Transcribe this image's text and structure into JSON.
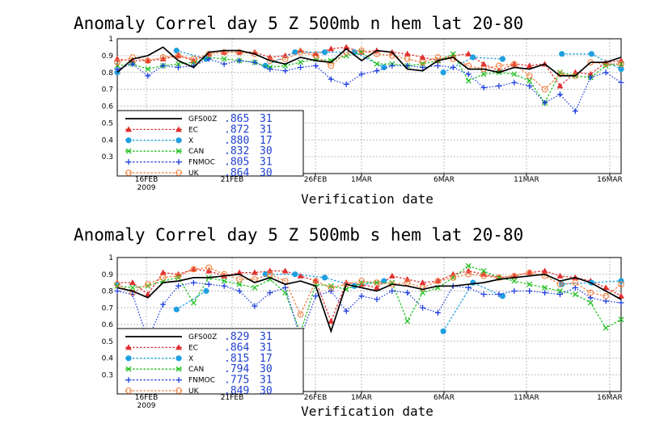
{
  "chart_data": [
    {
      "type": "line",
      "title": "Anomaly Correl   day 5   Z 500mb   n hem   lat 20-80",
      "xlabel": "Verification date",
      "ylabel": "",
      "ylim": [
        0.2,
        1.0
      ],
      "yticks": [
        "1",
        "0.9",
        "0.8",
        "0.7",
        "0.6",
        "0.5",
        "0.4",
        "0.3"
      ],
      "xtick_labels": [
        "16FEB",
        "21FEB",
        "26FEB",
        "1MAR",
        "6MAR",
        "11MAR",
        "16MAR"
      ],
      "xtick_sublabel": "2009",
      "grid": true,
      "legend_placement": "bottom-left",
      "series": [
        {
          "name": "GFS00Z",
          "score": ".865",
          "count": "31",
          "color": "#000000",
          "marker": "none",
          "values": [
            0.8,
            0.88,
            0.9,
            0.95,
            0.87,
            0.83,
            0.92,
            0.93,
            0.93,
            0.91,
            0.87,
            0.85,
            0.89,
            0.87,
            0.86,
            0.94,
            0.87,
            0.93,
            0.92,
            0.82,
            0.81,
            0.87,
            0.89,
            0.82,
            0.82,
            0.8,
            0.83,
            0.82,
            0.85,
            0.78,
            0.78,
            0.86,
            0.86,
            0.89
          ]
        },
        {
          "name": "EC",
          "score": ".872",
          "count": "31",
          "color": "#e03030",
          "marker": "triangle",
          "values": [
            0.88,
            0.87,
            0.87,
            0.88,
            0.9,
            0.87,
            0.91,
            0.92,
            0.92,
            0.92,
            0.89,
            0.9,
            0.93,
            0.91,
            0.94,
            0.95,
            0.92,
            0.93,
            0.92,
            0.91,
            0.89,
            0.87,
            0.9,
            0.91,
            0.85,
            0.81,
            0.85,
            0.84,
            0.85,
            0.72,
            0.8,
            0.79,
            0.86,
            0.87
          ]
        },
        {
          "name": "X",
          "score": ".880",
          "count": "17",
          "color": "#1ea0e0",
          "marker": "circle",
          "values": [
            0.8,
            null,
            0.93,
            0.88,
            null,
            0.84,
            0.92,
            0.92,
            0.92,
            0.83,
            null,
            0.8,
            0.89,
            0.88,
            null,
            0.91,
            0.91,
            0.82
          ]
        },
        {
          "name": "CAN",
          "score": ".832",
          "count": "30",
          "color": "#20c020",
          "marker": "x",
          "values": [
            0.84,
            0.85,
            0.82,
            0.84,
            0.85,
            0.86,
            0.89,
            0.88,
            0.87,
            0.86,
            0.83,
            0.84,
            0.86,
            0.88,
            0.87,
            0.9,
            0.92,
            0.85,
            0.85,
            0.84,
            0.85,
            0.87,
            0.91,
            0.75,
            0.79,
            0.8,
            0.79,
            0.75,
            0.62,
            0.8,
            0.78,
            0.77,
            0.84,
            0.85
          ]
        },
        {
          "name": "FNMOC",
          "score": ".805",
          "count": "31",
          "color": "#2040e0",
          "marker": "plus",
          "values": [
            0.82,
            0.85,
            0.78,
            0.84,
            0.83,
            0.84,
            0.88,
            0.85,
            0.87,
            0.86,
            0.82,
            0.81,
            0.83,
            0.84,
            0.76,
            0.73,
            0.79,
            0.81,
            0.84,
            0.84,
            0.83,
            0.84,
            0.83,
            0.79,
            0.71,
            0.72,
            0.74,
            0.72,
            0.62,
            0.67,
            0.57,
            0.77,
            0.8,
            0.74
          ]
        },
        {
          "name": "UK",
          "score": ".864",
          "count": "30",
          "color": "#f08040",
          "marker": "opencircle",
          "values": [
            0.86,
            0.89,
            0.87,
            0.89,
            0.9,
            0.88,
            0.91,
            0.92,
            0.92,
            0.91,
            0.87,
            0.88,
            0.92,
            0.9,
            0.84,
            0.92,
            0.93,
            0.91,
            0.9,
            0.88,
            0.86,
            0.89,
            0.88,
            0.84,
            0.82,
            0.84,
            0.85,
            0.78,
            0.7,
            0.79,
            0.78,
            0.86,
            0.85,
            0.85
          ]
        }
      ]
    },
    {
      "type": "line",
      "title": "Anomaly Correl   day 5   Z 500mb   s hem   lat 20-80",
      "xlabel": "Verification date",
      "ylabel": "",
      "ylim": [
        0.2,
        1.0
      ],
      "yticks": [
        "1",
        "0.9",
        "0.8",
        "0.7",
        "0.6",
        "0.5",
        "0.4",
        "0.3"
      ],
      "xtick_labels": [
        "16FEB",
        "21FEB",
        "26FEB",
        "1MAR",
        "6MAR",
        "11MAR",
        "16MAR"
      ],
      "xtick_sublabel": "2009",
      "grid": true,
      "legend_placement": "bottom-left",
      "series": [
        {
          "name": "GFS00Z",
          "score": ".829",
          "count": "31",
          "color": "#000000",
          "marker": "none",
          "values": [
            0.82,
            0.8,
            0.76,
            0.85,
            0.86,
            0.88,
            0.88,
            0.89,
            0.9,
            0.85,
            0.88,
            0.84,
            0.86,
            0.83,
            0.56,
            0.84,
            0.82,
            0.8,
            0.84,
            0.83,
            0.81,
            0.83,
            0.83,
            0.84,
            0.85,
            0.87,
            0.88,
            0.89,
            0.9,
            0.86,
            0.88,
            0.85,
            0.8,
            0.75
          ]
        },
        {
          "name": "EC",
          "score": ".864",
          "count": "31",
          "color": "#e03030",
          "marker": "triangle",
          "values": [
            0.85,
            0.85,
            0.78,
            0.91,
            0.9,
            0.93,
            0.92,
            0.89,
            0.91,
            0.91,
            0.92,
            0.92,
            0.89,
            0.86,
            0.62,
            0.85,
            0.84,
            0.82,
            0.89,
            0.87,
            0.85,
            0.86,
            0.9,
            0.92,
            0.9,
            0.88,
            0.89,
            0.91,
            0.92,
            0.89,
            0.88,
            0.86,
            0.82,
            0.77
          ]
        },
        {
          "name": "X",
          "score": ".815",
          "count": "17",
          "color": "#1ea0e0",
          "marker": "circle",
          "values": [
            0.84,
            null,
            0.69,
            0.8,
            null,
            0.9,
            0.9,
            0.88,
            0.83,
            0.86,
            null,
            0.56,
            0.85,
            0.77,
            null,
            0.84,
            0.85,
            0.86
          ]
        },
        {
          "name": "CAN",
          "score": ".794",
          "count": "30",
          "color": "#20c020",
          "marker": "x",
          "values": [
            0.83,
            0.82,
            0.83,
            0.86,
            0.88,
            0.73,
            0.88,
            0.86,
            0.84,
            0.82,
            0.87,
            0.79,
            0.55,
            0.84,
            0.83,
            0.81,
            0.85,
            0.85,
            0.85,
            0.62,
            0.79,
            0.82,
            0.88,
            0.95,
            0.92,
            0.88,
            0.86,
            0.84,
            0.82,
            0.8,
            0.78,
            0.73,
            0.58,
            0.63
          ]
        },
        {
          "name": "FNMOC",
          "score": ".775",
          "count": "31",
          "color": "#2040e0",
          "marker": "plus",
          "values": [
            0.8,
            0.78,
            0.51,
            0.72,
            0.83,
            0.85,
            0.84,
            0.83,
            0.8,
            0.71,
            0.79,
            0.82,
            0.52,
            0.77,
            0.8,
            0.68,
            0.77,
            0.75,
            0.8,
            0.79,
            0.7,
            0.67,
            0.83,
            0.82,
            0.78,
            0.78,
            0.8,
            0.8,
            0.79,
            0.78,
            0.82,
            0.76,
            0.74,
            0.73
          ]
        },
        {
          "name": "UK",
          "score": ".849",
          "count": "30",
          "color": "#f08040",
          "marker": "opencircle",
          "values": [
            0.84,
            0.79,
            0.84,
            0.88,
            0.89,
            0.93,
            0.94,
            0.9,
            0.87,
            0.87,
            0.9,
            0.86,
            0.66,
            0.86,
            0.82,
            0.84,
            0.86,
            0.85,
            0.84,
            0.85,
            0.82,
            0.86,
            0.88,
            0.9,
            0.89,
            0.88,
            0.89,
            0.91,
            0.89,
            0.84,
            0.85,
            0.79,
            0.77,
            0.84
          ]
        }
      ]
    }
  ]
}
